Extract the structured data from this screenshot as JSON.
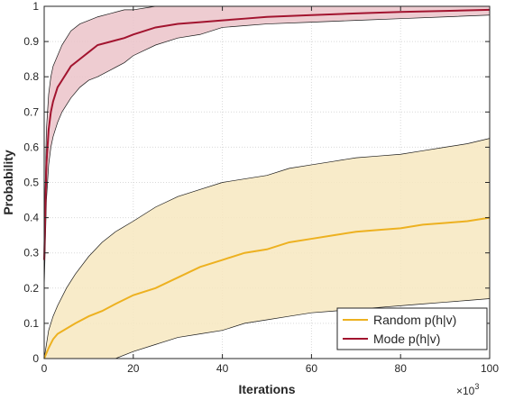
{
  "chart_data": {
    "type": "line",
    "title": "",
    "xlabel": "Iterations",
    "ylabel": "Probability",
    "x_multiplier_label": "×10",
    "x_multiplier_exp": "3",
    "xlim": [
      0,
      100
    ],
    "ylim": [
      0,
      1
    ],
    "x_ticks": [
      0,
      20,
      40,
      60,
      80,
      100
    ],
    "y_ticks": [
      0,
      0.1,
      0.2,
      0.3,
      0.4,
      0.5,
      0.6,
      0.7,
      0.8,
      0.9,
      1
    ],
    "grid": "dotted",
    "legend_position": "bottom-right",
    "series": [
      {
        "name": "Random p(h|v)",
        "color": "#EDB120",
        "band_color": "#F7E7BF",
        "x": [
          0,
          1,
          2,
          3,
          5,
          7,
          10,
          13,
          16,
          20,
          25,
          30,
          35,
          40,
          45,
          50,
          55,
          60,
          65,
          70,
          75,
          80,
          85,
          90,
          95,
          100
        ],
        "mean": [
          0.0,
          0.03,
          0.055,
          0.07,
          0.085,
          0.1,
          0.12,
          0.135,
          0.155,
          0.18,
          0.2,
          0.23,
          0.26,
          0.28,
          0.3,
          0.31,
          0.33,
          0.34,
          0.35,
          0.36,
          0.365,
          0.37,
          0.38,
          0.385,
          0.39,
          0.4
        ],
        "upper": [
          0.0,
          0.08,
          0.12,
          0.15,
          0.2,
          0.24,
          0.29,
          0.33,
          0.36,
          0.39,
          0.43,
          0.46,
          0.48,
          0.5,
          0.51,
          0.52,
          0.54,
          0.55,
          0.56,
          0.57,
          0.575,
          0.58,
          0.59,
          0.6,
          0.61,
          0.625
        ],
        "lower": [
          0.0,
          0.0,
          0.0,
          0.0,
          0.0,
          0.0,
          0.0,
          0.0,
          0.0,
          0.02,
          0.04,
          0.06,
          0.07,
          0.08,
          0.1,
          0.11,
          0.12,
          0.13,
          0.135,
          0.14,
          0.145,
          0.15,
          0.155,
          0.16,
          0.165,
          0.17
        ]
      },
      {
        "name": "Mode p(h|v)",
        "color": "#A2142F",
        "band_color": "#EBC3C9",
        "x": [
          0,
          0.5,
          1,
          1.5,
          2,
          3,
          4,
          5,
          6,
          8,
          10,
          12,
          15,
          18,
          20,
          25,
          30,
          35,
          40,
          45,
          50,
          60,
          70,
          80,
          90,
          100
        ],
        "mean": [
          0.28,
          0.55,
          0.65,
          0.7,
          0.73,
          0.77,
          0.79,
          0.81,
          0.83,
          0.85,
          0.87,
          0.89,
          0.9,
          0.91,
          0.92,
          0.94,
          0.95,
          0.955,
          0.96,
          0.965,
          0.97,
          0.975,
          0.98,
          0.984,
          0.987,
          0.99
        ],
        "upper": [
          0.35,
          0.65,
          0.75,
          0.8,
          0.83,
          0.86,
          0.89,
          0.91,
          0.93,
          0.95,
          0.96,
          0.97,
          0.98,
          0.99,
          0.99,
          1.0,
          1.0,
          1.0,
          1.0,
          1.0,
          1.0,
          1.0,
          1.0,
          1.0,
          1.0,
          1.0
        ],
        "lower": [
          0.2,
          0.45,
          0.55,
          0.6,
          0.63,
          0.67,
          0.7,
          0.72,
          0.74,
          0.77,
          0.79,
          0.8,
          0.82,
          0.84,
          0.86,
          0.89,
          0.91,
          0.92,
          0.94,
          0.945,
          0.95,
          0.955,
          0.96,
          0.965,
          0.97,
          0.975
        ]
      }
    ]
  }
}
